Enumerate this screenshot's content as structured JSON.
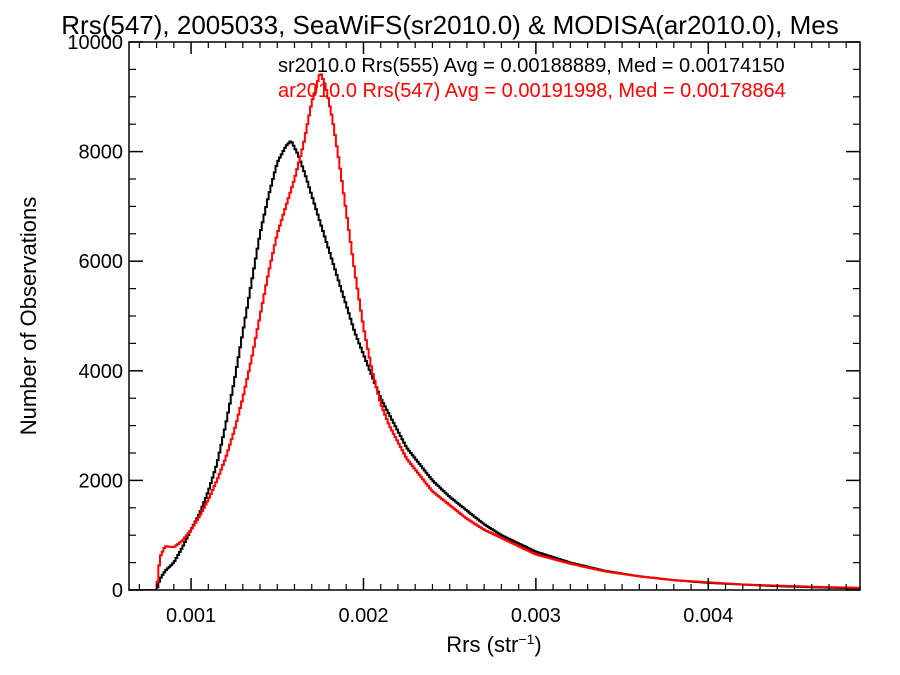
{
  "chart_data": {
    "type": "line",
    "title": "Rrs(547), 2005033, SeaWiFS(sr2010.0) & MODISA(ar2010.0), Mes",
    "xlabel": "Rrs (str",
    "xlabel_superscript": "−1",
    "xlabel_suffix": ")",
    "ylabel": "Number of Observations",
    "xlim": [
      0.00064,
      0.00488
    ],
    "ylim": [
      0,
      10000
    ],
    "xticks": [
      0.001,
      0.002,
      0.003,
      0.004
    ],
    "xtick_labels": [
      "0.001",
      "0.002",
      "0.003",
      "0.004"
    ],
    "yticks": [
      0,
      2000,
      4000,
      6000,
      8000,
      10000
    ],
    "ytick_labels": [
      "0",
      "2000",
      "4000",
      "6000",
      "8000",
      "10000"
    ],
    "grid": false,
    "legend_position": "top-right",
    "series": [
      {
        "name": "sr2010.0 Rrs(555) Avg = 0.00188889, Med = 0.00174150",
        "color": "#000000",
        "points": [
          [
            0.00064,
            0
          ],
          [
            0.0008,
            0
          ],
          [
            0.00082,
            200
          ],
          [
            0.00085,
            350
          ],
          [
            0.0009,
            500
          ],
          [
            0.00095,
            780
          ],
          [
            0.001,
            1100
          ],
          [
            0.00105,
            1400
          ],
          [
            0.0011,
            1800
          ],
          [
            0.00115,
            2300
          ],
          [
            0.0012,
            3000
          ],
          [
            0.00125,
            3800
          ],
          [
            0.0013,
            4700
          ],
          [
            0.00135,
            5600
          ],
          [
            0.0014,
            6500
          ],
          [
            0.00145,
            7200
          ],
          [
            0.0015,
            7800
          ],
          [
            0.00155,
            8100
          ],
          [
            0.00158,
            8200
          ],
          [
            0.00162,
            7950
          ],
          [
            0.00166,
            7600
          ],
          [
            0.0017,
            7200
          ],
          [
            0.00175,
            6700
          ],
          [
            0.0018,
            6200
          ],
          [
            0.00185,
            5700
          ],
          [
            0.0019,
            5200
          ],
          [
            0.00195,
            4700
          ],
          [
            0.002,
            4300
          ],
          [
            0.00205,
            3900
          ],
          [
            0.0021,
            3500
          ],
          [
            0.00215,
            3200
          ],
          [
            0.0022,
            2900
          ],
          [
            0.00225,
            2600
          ],
          [
            0.0023,
            2400
          ],
          [
            0.0024,
            2000
          ],
          [
            0.0025,
            1700
          ],
          [
            0.0026,
            1450
          ],
          [
            0.0027,
            1200
          ],
          [
            0.0028,
            1000
          ],
          [
            0.0029,
            850
          ],
          [
            0.003,
            700
          ],
          [
            0.0032,
            500
          ],
          [
            0.0034,
            350
          ],
          [
            0.0036,
            250
          ],
          [
            0.0038,
            180
          ],
          [
            0.004,
            130
          ],
          [
            0.0042,
            100
          ],
          [
            0.0044,
            70
          ],
          [
            0.0046,
            50
          ],
          [
            0.00488,
            30
          ]
        ]
      },
      {
        "name": "ar2010.0 Rrs(547) Avg = 0.00191998, Med = 0.00178864",
        "color": "#ff0000",
        "points": [
          [
            0.00064,
            0
          ],
          [
            0.0008,
            0
          ],
          [
            0.00082,
            600
          ],
          [
            0.00085,
            800
          ],
          [
            0.0009,
            780
          ],
          [
            0.00095,
            900
          ],
          [
            0.001,
            1100
          ],
          [
            0.00105,
            1350
          ],
          [
            0.0011,
            1650
          ],
          [
            0.00115,
            2000
          ],
          [
            0.0012,
            2400
          ],
          [
            0.00125,
            2900
          ],
          [
            0.0013,
            3500
          ],
          [
            0.00135,
            4200
          ],
          [
            0.0014,
            5000
          ],
          [
            0.00145,
            5800
          ],
          [
            0.0015,
            6500
          ],
          [
            0.00155,
            7000
          ],
          [
            0.0016,
            7500
          ],
          [
            0.00165,
            8100
          ],
          [
            0.0017,
            8900
          ],
          [
            0.00175,
            9450
          ],
          [
            0.00178,
            9200
          ],
          [
            0.00182,
            8600
          ],
          [
            0.00186,
            7800
          ],
          [
            0.0019,
            6900
          ],
          [
            0.00195,
            5800
          ],
          [
            0.002,
            4800
          ],
          [
            0.00205,
            4000
          ],
          [
            0.0021,
            3400
          ],
          [
            0.00215,
            3000
          ],
          [
            0.0022,
            2700
          ],
          [
            0.00225,
            2400
          ],
          [
            0.0023,
            2200
          ],
          [
            0.0024,
            1800
          ],
          [
            0.0025,
            1550
          ],
          [
            0.0026,
            1300
          ],
          [
            0.0027,
            1100
          ],
          [
            0.0028,
            950
          ],
          [
            0.0029,
            800
          ],
          [
            0.003,
            650
          ],
          [
            0.0032,
            480
          ],
          [
            0.0034,
            340
          ],
          [
            0.0036,
            250
          ],
          [
            0.0038,
            180
          ],
          [
            0.004,
            140
          ],
          [
            0.0042,
            100
          ],
          [
            0.0044,
            80
          ],
          [
            0.0046,
            60
          ],
          [
            0.00488,
            40
          ]
        ]
      }
    ]
  }
}
